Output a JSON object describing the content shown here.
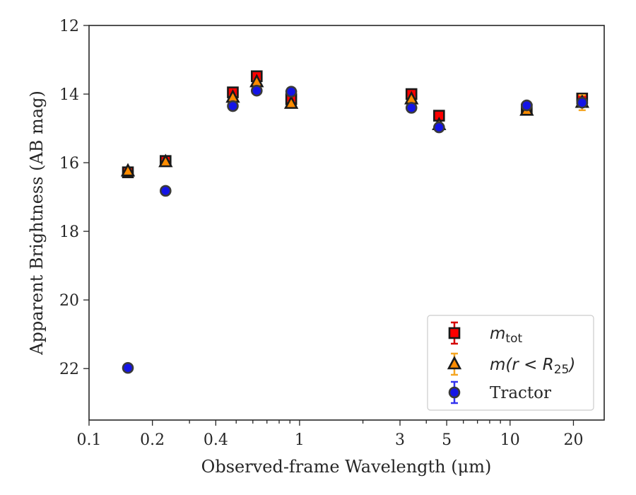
{
  "chart_data": {
    "type": "scatter",
    "xscale": "log",
    "yinverted": true,
    "xlim": [
      0.1,
      28
    ],
    "ylim": [
      12,
      23.5
    ],
    "xlabel": "Observed-frame Wavelength (μm)",
    "ylabel": "Apparent Brightness (AB mag)",
    "xticks": [
      {
        "value": 0.1,
        "label": "0.1"
      },
      {
        "value": 0.2,
        "label": "0.2"
      },
      {
        "value": 0.4,
        "label": "0.4"
      },
      {
        "value": 1,
        "label": "1"
      },
      {
        "value": 3,
        "label": "3"
      },
      {
        "value": 5,
        "label": "5"
      },
      {
        "value": 10,
        "label": "10"
      },
      {
        "value": 20,
        "label": "20"
      }
    ],
    "yticks": [
      {
        "value": 12,
        "label": "12"
      },
      {
        "value": 14,
        "label": "14"
      },
      {
        "value": 16,
        "label": "16"
      },
      {
        "value": 18,
        "label": "18"
      },
      {
        "value": 20,
        "label": "20"
      },
      {
        "value": 22,
        "label": "22"
      }
    ],
    "legend_position": "lower-right",
    "series": [
      {
        "key": "mtot",
        "name": "m_tot",
        "marker": "square",
        "color": "#ff0000",
        "edge": "#1a1a1a",
        "errcolor": "#d40000",
        "points": [
          {
            "x": 0.153,
            "y": 16.28,
            "err": 0.05
          },
          {
            "x": 0.231,
            "y": 15.95,
            "err": 0.05
          },
          {
            "x": 0.482,
            "y": 13.95,
            "err": 0.05
          },
          {
            "x": 0.626,
            "y": 13.48,
            "err": 0.05
          },
          {
            "x": 0.913,
            "y": 14.15,
            "err": 0.05
          },
          {
            "x": 3.4,
            "y": 14.0,
            "err": 0.05
          },
          {
            "x": 4.6,
            "y": 14.63,
            "err": 0.05
          },
          {
            "x": 12.0,
            "y": 14.45,
            "err": 0.05
          },
          {
            "x": 22.0,
            "y": 14.13,
            "err": 0.08
          }
        ]
      },
      {
        "key": "mr25",
        "name": "m(r < R_25)",
        "marker": "triangle",
        "color": "#ff8c00",
        "edge": "#1a1a1a",
        "errcolor": "#f5a623",
        "points": [
          {
            "x": 0.153,
            "y": 16.25,
            "err": 0.05
          },
          {
            "x": 0.231,
            "y": 15.98,
            "err": 0.05
          },
          {
            "x": 0.482,
            "y": 14.1,
            "err": 0.05
          },
          {
            "x": 0.626,
            "y": 13.65,
            "err": 0.05
          },
          {
            "x": 0.913,
            "y": 14.28,
            "err": 0.05
          },
          {
            "x": 3.4,
            "y": 14.15,
            "err": 0.05
          },
          {
            "x": 4.6,
            "y": 14.9,
            "err": 0.05
          },
          {
            "x": 12.0,
            "y": 14.48,
            "err": 0.06
          },
          {
            "x": 22.0,
            "y": 14.25,
            "err": 0.22
          }
        ]
      },
      {
        "key": "tractor",
        "name": "Tractor",
        "marker": "circle",
        "color": "#1414e6",
        "edge": "#3a3a3a",
        "errcolor": "#3333ee",
        "points": [
          {
            "x": 0.153,
            "y": 21.98,
            "err": 0.05
          },
          {
            "x": 0.231,
            "y": 16.82,
            "err": 0.05
          },
          {
            "x": 0.482,
            "y": 14.35,
            "err": 0.05
          },
          {
            "x": 0.626,
            "y": 13.9,
            "err": 0.05
          },
          {
            "x": 0.913,
            "y": 13.93,
            "err": 0.05
          },
          {
            "x": 3.4,
            "y": 14.4,
            "err": 0.05
          },
          {
            "x": 4.6,
            "y": 14.97,
            "err": 0.05
          },
          {
            "x": 12.0,
            "y": 14.33,
            "err": 0.06
          },
          {
            "x": 22.0,
            "y": 14.25,
            "err": 0.08
          }
        ]
      }
    ]
  },
  "legend": {
    "mtot_base": "m",
    "mtot_sub": "tot",
    "mr25_pre": "m(r < R",
    "mr25_sub": "25",
    "mr25_post": ")",
    "tractor": "Tractor"
  }
}
